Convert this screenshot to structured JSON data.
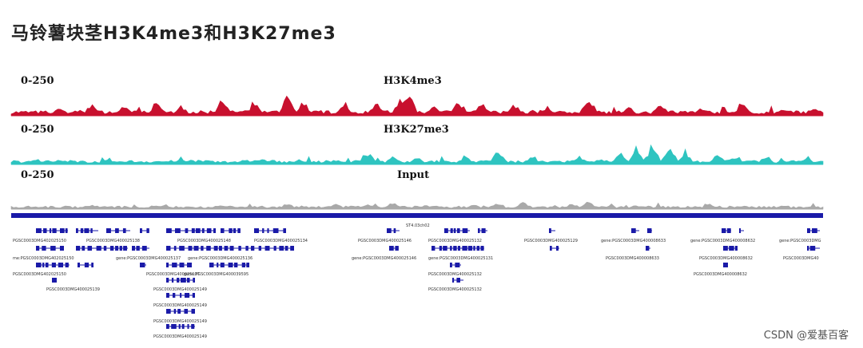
{
  "title": "马铃薯块茎H3K4me3和H3K27me3",
  "watermark": "CSDN @爱基百客",
  "chart_data": {
    "type": "genome-browser-tracks",
    "tracks": [
      {
        "name": "H3K4me3",
        "range": "0-250",
        "color": "#c8102e",
        "peaks": [
          [
            0.06,
            0.35
          ],
          [
            0.1,
            0.55
          ],
          [
            0.14,
            0.4
          ],
          [
            0.18,
            0.5
          ],
          [
            0.21,
            0.4
          ],
          [
            0.26,
            0.65
          ],
          [
            0.3,
            0.5
          ],
          [
            0.34,
            0.85
          ],
          [
            0.36,
            0.6
          ],
          [
            0.41,
            0.45
          ],
          [
            0.45,
            0.5
          ],
          [
            0.48,
            0.75
          ],
          [
            0.49,
            1.0
          ],
          [
            0.52,
            0.45
          ],
          [
            0.55,
            0.5
          ],
          [
            0.58,
            0.6
          ],
          [
            0.62,
            0.45
          ],
          [
            0.66,
            0.35
          ],
          [
            0.71,
            0.6
          ],
          [
            0.76,
            0.4
          ],
          [
            0.8,
            0.5
          ],
          [
            0.85,
            0.35
          ],
          [
            0.9,
            0.55
          ],
          [
            0.95,
            0.3
          ],
          [
            0.99,
            0.3
          ]
        ]
      },
      {
        "name": "H3K27me3",
        "range": "0-250",
        "color": "#2ec4c0",
        "peaks": [
          [
            0.03,
            0.25
          ],
          [
            0.12,
            0.3
          ],
          [
            0.22,
            0.2
          ],
          [
            0.31,
            0.25
          ],
          [
            0.4,
            0.2
          ],
          [
            0.44,
            0.55
          ],
          [
            0.47,
            0.5
          ],
          [
            0.5,
            0.35
          ],
          [
            0.56,
            0.4
          ],
          [
            0.6,
            0.65
          ],
          [
            0.64,
            0.35
          ],
          [
            0.7,
            0.4
          ],
          [
            0.75,
            0.55
          ],
          [
            0.77,
            0.7
          ],
          [
            0.79,
            1.0
          ],
          [
            0.81,
            0.8
          ],
          [
            0.83,
            0.6
          ],
          [
            0.87,
            0.5
          ],
          [
            0.89,
            0.4
          ],
          [
            0.93,
            0.45
          ],
          [
            0.98,
            0.35
          ]
        ]
      },
      {
        "name": "Input",
        "range": "0-250",
        "color": "#a9a9a9",
        "peaks": [
          [
            0.02,
            0.2
          ],
          [
            0.1,
            0.25
          ],
          [
            0.19,
            0.3
          ],
          [
            0.26,
            0.3
          ],
          [
            0.34,
            0.4
          ],
          [
            0.4,
            0.35
          ],
          [
            0.44,
            0.35
          ],
          [
            0.47,
            0.45
          ],
          [
            0.51,
            0.3
          ],
          [
            0.57,
            0.35
          ],
          [
            0.6,
            0.4
          ],
          [
            0.63,
            0.55
          ],
          [
            0.69,
            0.35
          ],
          [
            0.71,
            0.65
          ],
          [
            0.77,
            0.3
          ],
          [
            0.86,
            0.35
          ],
          [
            0.95,
            0.3
          ]
        ]
      }
    ],
    "gene_labels": [
      "PGSC0003DMG402025150",
      "PGSC0003DMG400025138",
      "PGSC0003DMG400025148",
      "PGSC0003DMG400025134",
      "ST4.03ch02",
      "PGSC0003DMG400025146",
      "PGSC0003DMG400025132",
      "PGSC0003DMG400025129",
      "gene:PGSC0003DMG400008633",
      "gene:PGSC0003DMG400008632",
      "gene:PGSC0003DMG",
      "me:PGSC0003DMG402025150",
      "gene:PGSC0003DMG400025137",
      "gene:PGSC0003DMG400025136",
      "gene:PGSC0003DMG400025146",
      "gene:PGSC0003DMG400025131",
      "PGSC0003DMG400008633",
      "PGSC0003DMG400008632",
      "PGSC0003DMG40",
      "PGSC0003DMG402025150",
      "PGSC0003DMG400025137",
      "gene:PGSC0003DMG400039595",
      "PGSC0003DMG400025132",
      "PGSC0003DMG400008632",
      "PGSC0003DMG400025139",
      "PGSC0003DMG400025149",
      "PGSC0003DMG400025132",
      "PGSC0003DMG400025149",
      "PGSC0003DMG400025149",
      "PGSC0003DMG400025149"
    ]
  }
}
